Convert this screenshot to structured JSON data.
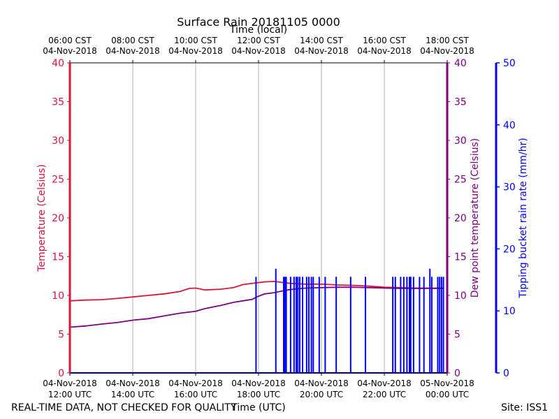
{
  "chart_data": {
    "type": "line",
    "title": "Surface Rain 20181105 0000",
    "x_top_label": "Time (local)",
    "x_bottom_label": "Time (UTC)",
    "footer_left": "REAL-TIME DATA, NOT CHECKED FOR QUALITY",
    "footer_right": "Site: ISS1",
    "x_range_hours": [
      12,
      24
    ],
    "top_ticks": [
      {
        "hour": 12,
        "line1": "06:00 CST",
        "line2": "04-Nov-2018"
      },
      {
        "hour": 14,
        "line1": "08:00 CST",
        "line2": "04-Nov-2018"
      },
      {
        "hour": 16,
        "line1": "10:00 CST",
        "line2": "04-Nov-2018"
      },
      {
        "hour": 18,
        "line1": "12:00 CST",
        "line2": "04-Nov-2018"
      },
      {
        "hour": 20,
        "line1": "14:00 CST",
        "line2": "04-Nov-2018"
      },
      {
        "hour": 22,
        "line1": "16:00 CST",
        "line2": "04-Nov-2018"
      },
      {
        "hour": 24,
        "line1": "18:00 CST",
        "line2": "04-Nov-2018"
      }
    ],
    "bottom_ticks": [
      {
        "hour": 12,
        "line1": "04-Nov-2018",
        "line2": "12:00 UTC"
      },
      {
        "hour": 14,
        "line1": "04-Nov-2018",
        "line2": "14:00 UTC"
      },
      {
        "hour": 16,
        "line1": "04-Nov-2018",
        "line2": "16:00 UTC"
      },
      {
        "hour": 18,
        "line1": "04-Nov-2018",
        "line2": "18:00 UTC"
      },
      {
        "hour": 20,
        "line1": "04-Nov-2018",
        "line2": "20:00 UTC"
      },
      {
        "hour": 22,
        "line1": "04-Nov-2018",
        "line2": "22:00 UTC"
      },
      {
        "hour": 24,
        "line1": "05-Nov-2018",
        "line2": "00:00 UTC"
      }
    ],
    "y_left": {
      "label": "Temperature (Celsius)",
      "range": [
        0,
        40
      ],
      "ticks": [
        0,
        5,
        10,
        15,
        20,
        25,
        30,
        35,
        40
      ],
      "color": "#dc143c"
    },
    "y_right1": {
      "label": "Dew point temperature (Celsius)",
      "range": [
        0,
        40
      ],
      "ticks": [
        0,
        5,
        10,
        15,
        20,
        25,
        30,
        35,
        40
      ],
      "color": "#800080"
    },
    "y_right2": {
      "label": "Tipping bucket rain rate (mm/hr)",
      "range": [
        0,
        50
      ],
      "ticks": [
        0,
        10,
        20,
        30,
        40,
        50
      ],
      "color": "#0000ff"
    },
    "series": [
      {
        "name": "Temperature",
        "color": "#dc143c",
        "points": [
          [
            12.0,
            9.3
          ],
          [
            12.5,
            9.4
          ],
          [
            13.0,
            9.45
          ],
          [
            13.5,
            9.6
          ],
          [
            14.0,
            9.8
          ],
          [
            14.5,
            10.0
          ],
          [
            15.0,
            10.2
          ],
          [
            15.5,
            10.5
          ],
          [
            15.8,
            10.9
          ],
          [
            16.0,
            10.95
          ],
          [
            16.3,
            10.7
          ],
          [
            16.8,
            10.8
          ],
          [
            17.2,
            11.0
          ],
          [
            17.5,
            11.4
          ],
          [
            17.9,
            11.6
          ],
          [
            18.2,
            11.75
          ],
          [
            18.5,
            11.8
          ],
          [
            18.7,
            11.7
          ],
          [
            19.0,
            11.55
          ],
          [
            19.5,
            11.45
          ],
          [
            20.0,
            11.45
          ],
          [
            20.5,
            11.35
          ],
          [
            21.0,
            11.3
          ],
          [
            21.5,
            11.2
          ],
          [
            22.0,
            11.05
          ],
          [
            22.5,
            11.0
          ],
          [
            23.0,
            10.95
          ],
          [
            23.5,
            10.95
          ],
          [
            23.9,
            10.95
          ]
        ]
      },
      {
        "name": "Dew point",
        "color": "#800080",
        "points": [
          [
            12.0,
            5.9
          ],
          [
            12.5,
            6.05
          ],
          [
            13.0,
            6.3
          ],
          [
            13.5,
            6.5
          ],
          [
            14.0,
            6.8
          ],
          [
            14.5,
            7.0
          ],
          [
            15.0,
            7.35
          ],
          [
            15.5,
            7.7
          ],
          [
            16.0,
            7.95
          ],
          [
            16.3,
            8.3
          ],
          [
            16.8,
            8.7
          ],
          [
            17.2,
            9.1
          ],
          [
            17.5,
            9.3
          ],
          [
            17.8,
            9.5
          ],
          [
            18.0,
            9.9
          ],
          [
            18.2,
            10.2
          ],
          [
            18.5,
            10.35
          ],
          [
            18.8,
            10.6
          ],
          [
            19.0,
            10.75
          ],
          [
            19.5,
            10.95
          ],
          [
            20.0,
            11.0
          ],
          [
            20.5,
            11.05
          ],
          [
            21.0,
            11.05
          ],
          [
            21.5,
            11.0
          ],
          [
            22.0,
            10.95
          ],
          [
            22.5,
            10.9
          ],
          [
            23.0,
            10.9
          ],
          [
            23.5,
            10.9
          ],
          [
            23.9,
            10.9
          ]
        ]
      },
      {
        "name": "Rain rate",
        "color": "#0000ff",
        "spikes": [
          [
            17.92,
            15.5
          ],
          [
            18.55,
            16.8
          ],
          [
            18.8,
            15.5
          ],
          [
            18.84,
            15.5
          ],
          [
            18.88,
            15.5
          ],
          [
            19.02,
            15.5
          ],
          [
            19.13,
            15.5
          ],
          [
            19.2,
            15.5
          ],
          [
            19.25,
            15.5
          ],
          [
            19.31,
            15.5
          ],
          [
            19.4,
            15.5
          ],
          [
            19.53,
            15.5
          ],
          [
            19.6,
            15.5
          ],
          [
            19.68,
            15.5
          ],
          [
            19.74,
            15.5
          ],
          [
            19.93,
            15.5
          ],
          [
            20.12,
            15.5
          ],
          [
            20.47,
            15.5
          ],
          [
            20.93,
            15.5
          ],
          [
            21.4,
            15.5
          ],
          [
            22.27,
            15.5
          ],
          [
            22.35,
            15.5
          ],
          [
            22.52,
            15.5
          ],
          [
            22.62,
            15.5
          ],
          [
            22.72,
            15.5
          ],
          [
            22.8,
            15.5
          ],
          [
            22.84,
            15.5
          ],
          [
            22.93,
            15.5
          ],
          [
            23.12,
            15.5
          ],
          [
            23.26,
            15.5
          ],
          [
            23.45,
            16.8
          ],
          [
            23.51,
            15.5
          ],
          [
            23.7,
            15.5
          ],
          [
            23.76,
            15.5
          ],
          [
            23.82,
            15.5
          ],
          [
            23.88,
            15.5
          ]
        ]
      }
    ]
  }
}
